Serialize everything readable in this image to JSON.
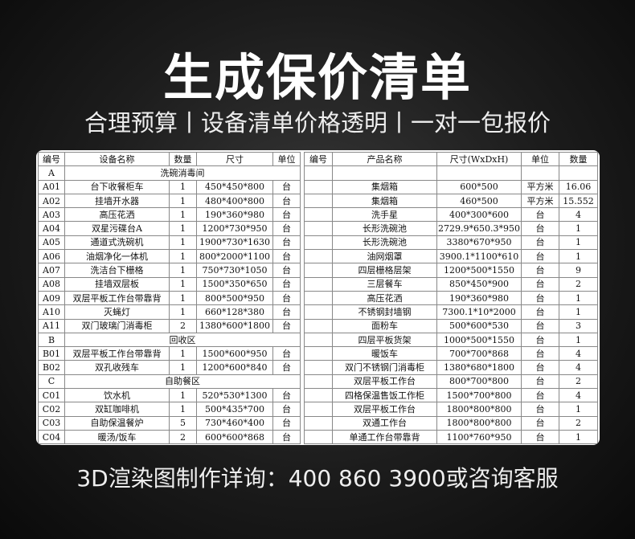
{
  "title": "生成保价清单",
  "subtitle": "合理预算丨设备清单价格透明丨一对一包报价",
  "footer": "3D渲染图制作详询：400 860 3900或咨询客服",
  "left_table": {
    "headers": [
      "编号",
      "设备名称",
      "数量",
      "尺寸",
      "单位"
    ],
    "rows": [
      {
        "section": "A",
        "label": "洗碗消毒间"
      },
      [
        "A01",
        "台下收餐柜车",
        "1",
        "450*450*800",
        "台"
      ],
      [
        "A02",
        "挂墙开水器",
        "1",
        "480*400*800",
        "台"
      ],
      [
        "A03",
        "高压花洒",
        "1",
        "190*360*980",
        "台"
      ],
      [
        "A04",
        "双星污碟台A",
        "1",
        "1200*730*950",
        "台"
      ],
      [
        "A05",
        "通道式洗碗机",
        "1",
        "1900*730*1630",
        "台"
      ],
      [
        "A06",
        "油烟净化一体机",
        "1",
        "800*2000*1100",
        "台"
      ],
      [
        "A07",
        "洗洁台下栅格",
        "1",
        "750*730*1050",
        "台"
      ],
      [
        "A08",
        "挂墙双层板",
        "1",
        "1500*350*650",
        "台"
      ],
      [
        "A09",
        "双层平板工作台带靠背",
        "1",
        "800*500*950",
        "台"
      ],
      [
        "A10",
        "灭蝇灯",
        "1",
        "660*128*380",
        "台"
      ],
      [
        "A11",
        "双门玻璃门消毒柜",
        "2",
        "1380*600*1800",
        "台"
      ],
      {
        "section": "B",
        "label": "回收区"
      },
      [
        "B01",
        "双层平板工作台带靠背",
        "1",
        "1500*600*950",
        "台"
      ],
      [
        "B02",
        "双孔收残车",
        "1",
        "1200*600*840",
        "台"
      ],
      {
        "section": "C",
        "label": "自助餐区"
      },
      [
        "C01",
        "饮水机",
        "1",
        "520*530*1300",
        "台"
      ],
      [
        "C02",
        "双缸咖啡机",
        "1",
        "500*435*700",
        "台"
      ],
      [
        "C03",
        "自助保温餐炉",
        "5",
        "730*460*400",
        "台"
      ],
      [
        "C04",
        "暖汤/饭车",
        "2",
        "600*600*868",
        "台"
      ]
    ]
  },
  "right_table": {
    "headers": [
      "编号",
      "产品名称",
      "尺寸(WxDxH)",
      "单位",
      "数量"
    ],
    "rows": [
      [
        "",
        "",
        "",
        "",
        ""
      ],
      [
        "",
        "集烟箱",
        "600*500",
        "平方米",
        "16.06"
      ],
      [
        "",
        "集烟箱",
        "460*500",
        "平方米",
        "15.552"
      ],
      [
        "",
        "洗手星",
        "400*300*600",
        "台",
        "4"
      ],
      [
        "",
        "长形洗碗池",
        "2729.9*650.3*950",
        "台",
        "1"
      ],
      [
        "",
        "长形洗碗池",
        "3380*670*950",
        "台",
        "1"
      ],
      [
        "",
        "油网烟罩",
        "3900.1*1100*610",
        "台",
        "1"
      ],
      [
        "",
        "四层栅格层架",
        "1200*500*1550",
        "台",
        "9"
      ],
      [
        "",
        "三层餐车",
        "850*450*900",
        "台",
        "2"
      ],
      [
        "",
        "高压花洒",
        "190*360*980",
        "台",
        "1"
      ],
      [
        "",
        "不锈钢封墙钢",
        "7300.1*10*2000",
        "台",
        "1"
      ],
      [
        "",
        "面粉车",
        "500*600*530",
        "台",
        "3"
      ],
      [
        "",
        "四层平板货架",
        "1000*500*1550",
        "台",
        "1"
      ],
      [
        "",
        "暖饭车",
        "700*700*868",
        "台",
        "4"
      ],
      [
        "",
        "双门不锈钢门消毒柜",
        "1380*680*1800",
        "台",
        "4"
      ],
      [
        "",
        "双层平板工作台",
        "800*700*800",
        "台",
        "2"
      ],
      [
        "",
        "四格保温售饭工作柜",
        "1500*700*800",
        "台",
        "4"
      ],
      [
        "",
        "双层平板工作台",
        "1800*800*800",
        "台",
        "1"
      ],
      [
        "",
        "双通工作台",
        "1800*800*800",
        "台",
        "2"
      ],
      [
        "",
        "单通工作台带靠背",
        "1100*760*950",
        "台",
        "1"
      ]
    ]
  }
}
